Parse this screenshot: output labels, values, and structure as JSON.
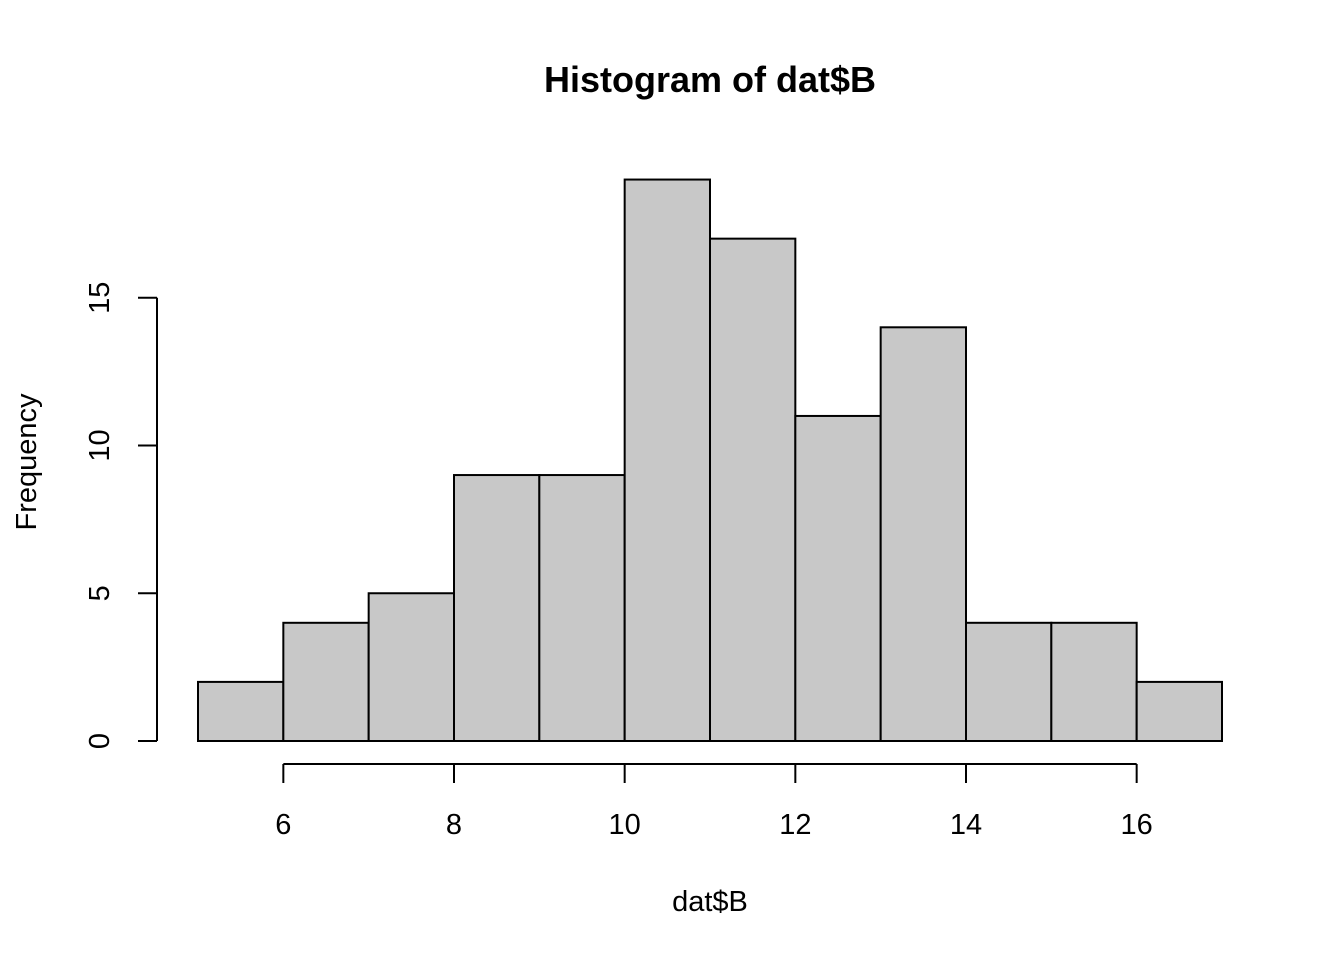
{
  "chart_data": {
    "type": "bar",
    "subtype": "histogram",
    "title": "Histogram of dat$B",
    "xlabel": "dat$B",
    "ylabel": "Frequency",
    "bins": [
      {
        "from": 5,
        "to": 6,
        "count": 2
      },
      {
        "from": 6,
        "to": 7,
        "count": 4
      },
      {
        "from": 7,
        "to": 8,
        "count": 5
      },
      {
        "from": 8,
        "to": 9,
        "count": 9
      },
      {
        "from": 9,
        "to": 10,
        "count": 9
      },
      {
        "from": 10,
        "to": 11,
        "count": 19
      },
      {
        "from": 11,
        "to": 12,
        "count": 17
      },
      {
        "from": 12,
        "to": 13,
        "count": 11
      },
      {
        "from": 13,
        "to": 14,
        "count": 14
      },
      {
        "from": 14,
        "to": 15,
        "count": 4
      },
      {
        "from": 15,
        "to": 16,
        "count": 4
      },
      {
        "from": 16,
        "to": 17,
        "count": 2
      }
    ],
    "xlim": [
      5,
      17
    ],
    "ylim": [
      0,
      19
    ],
    "x_ticks": [
      6,
      8,
      10,
      12,
      14,
      16
    ],
    "y_ticks": [
      0,
      5,
      10,
      15
    ],
    "grid": false,
    "legend": "none",
    "bar_fill": "#c8c8c8",
    "bar_stroke": "#000000"
  }
}
